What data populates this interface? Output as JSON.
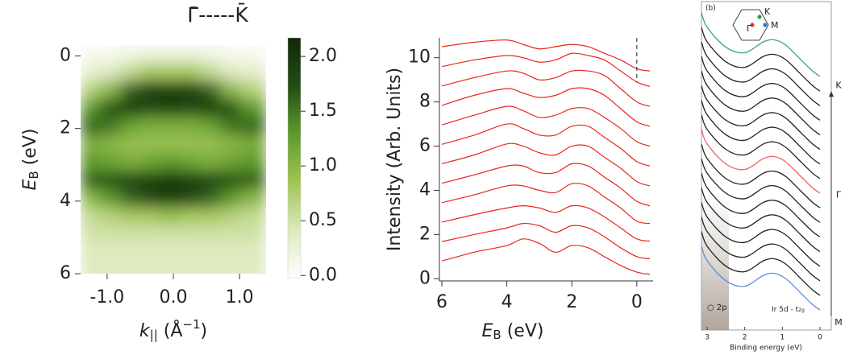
{
  "chart_data": [
    {
      "type": "heatmap",
      "title": "Γ̄-----K̄",
      "ylabel_parts": [
        {
          "text": "E",
          "style": "italic"
        },
        {
          "text": "B",
          "style": "sub"
        },
        {
          "text": " (eV)",
          "style": "normal"
        }
      ],
      "xlabel_parts": [
        {
          "text": "k",
          "style": "italic"
        },
        {
          "text": "||",
          "style": "sub"
        },
        {
          "text": " (Å",
          "style": "normal"
        },
        {
          "text": "−1",
          "style": "sup"
        },
        {
          "text": ")",
          "style": "normal"
        }
      ],
      "x": [
        -1.2,
        -0.9,
        -0.6,
        -0.3,
        0,
        0.3,
        0.6,
        0.9,
        1.2
      ],
      "y": [
        0,
        0.5,
        1,
        1.5,
        2,
        2.5,
        3,
        3.5,
        4,
        4.5,
        5,
        5.5,
        6
      ],
      "values": [
        [
          0.1,
          0.1,
          0.15,
          0.2,
          0.2,
          0.2,
          0.15,
          0.1,
          0.1
        ],
        [
          0.3,
          0.4,
          0.6,
          0.8,
          0.8,
          0.8,
          0.6,
          0.4,
          0.3
        ],
        [
          0.7,
          1.0,
          1.6,
          1.9,
          1.9,
          1.9,
          1.6,
          1.0,
          0.7
        ],
        [
          1.3,
          1.7,
          1.9,
          1.8,
          1.9,
          1.8,
          1.9,
          1.7,
          1.3
        ],
        [
          1.6,
          1.5,
          1.2,
          1.1,
          1.1,
          1.1,
          1.2,
          1.5,
          1.6
        ],
        [
          1.1,
          1.0,
          0.9,
          0.9,
          0.9,
          0.9,
          0.9,
          1.0,
          1.1
        ],
        [
          1.3,
          1.2,
          1.1,
          1.2,
          1.3,
          1.2,
          1.1,
          1.2,
          1.3
        ],
        [
          1.6,
          1.7,
          1.8,
          1.9,
          2.0,
          1.9,
          1.8,
          1.7,
          1.6
        ],
        [
          1.0,
          1.3,
          1.6,
          1.8,
          1.9,
          1.8,
          1.6,
          1.3,
          1.0
        ],
        [
          0.6,
          0.7,
          0.8,
          0.8,
          0.9,
          0.8,
          0.8,
          0.7,
          0.6
        ],
        [
          0.5,
          0.5,
          0.5,
          0.5,
          0.5,
          0.5,
          0.5,
          0.5,
          0.5
        ],
        [
          0.4,
          0.4,
          0.4,
          0.4,
          0.4,
          0.4,
          0.4,
          0.4,
          0.4
        ],
        [
          0.4,
          0.4,
          0.4,
          0.4,
          0.4,
          0.4,
          0.4,
          0.4,
          0.4
        ]
      ],
      "xlim": [
        -1.4,
        1.4
      ],
      "ylim": [
        6,
        -0.3
      ],
      "xticks": [
        {
          "value": -1,
          "label": "-1.0"
        },
        {
          "value": 0,
          "label": "0.0"
        },
        {
          "value": 1,
          "label": "1.0"
        }
      ],
      "yticks": [
        0,
        2,
        4,
        6
      ],
      "colorbar": {
        "lim": [
          -0.02,
          2.17
        ],
        "ticks": [
          {
            "value": 0,
            "label": "0.0"
          },
          0.5,
          {
            "value": 1,
            "label": "1.0"
          },
          1.5,
          {
            "value": 2,
            "label": "2.0"
          }
        ]
      },
      "colormap": [
        "#ffffff",
        "#dde9bd",
        "#9fc453",
        "#5e9a2c",
        "#234d14",
        "#10280a"
      ]
    },
    {
      "type": "line",
      "ylabel": "Intensity (Arb. Units)",
      "xlabel_parts": [
        {
          "text": "E",
          "style": "italic"
        },
        {
          "text": "B",
          "style": "sub"
        },
        {
          "text": " (eV)",
          "style": "normal"
        }
      ],
      "x": [
        6,
        5,
        4,
        3.5,
        3,
        2.5,
        2,
        1.5,
        1,
        0.5,
        0,
        -0.4
      ],
      "series": [
        {
          "color": "#e8261c",
          "values": [
            0.8,
            1.2,
            1.5,
            1.8,
            1.6,
            1.2,
            1.5,
            1.4,
            1.0,
            0.6,
            0.3,
            0.2
          ]
        },
        {
          "color": "#e8261c",
          "values": [
            1.68,
            2.0,
            2.3,
            2.5,
            2.4,
            2.1,
            2.4,
            2.3,
            1.9,
            1.4,
            1.0,
            0.9
          ]
        },
        {
          "color": "#e8261c",
          "values": [
            2.56,
            2.9,
            3.2,
            3.3,
            3.2,
            3.0,
            3.3,
            3.2,
            2.8,
            2.3,
            1.8,
            1.7
          ]
        },
        {
          "color": "#e8261c",
          "values": [
            3.44,
            3.8,
            4.2,
            4.2,
            4.0,
            3.9,
            4.3,
            4.2,
            3.7,
            3.2,
            2.6,
            2.5
          ]
        },
        {
          "color": "#e8261c",
          "values": [
            4.32,
            4.7,
            5.1,
            5.1,
            4.8,
            4.8,
            5.2,
            5.1,
            4.6,
            4.1,
            3.5,
            3.3
          ]
        },
        {
          "color": "#e8261c",
          "values": [
            5.2,
            5.6,
            6.1,
            6.0,
            5.7,
            5.6,
            6.0,
            6.0,
            5.5,
            5.0,
            4.4,
            4.2
          ]
        },
        {
          "color": "#e8261c",
          "values": [
            6.08,
            6.5,
            7.0,
            6.8,
            6.5,
            6.5,
            6.9,
            6.9,
            6.4,
            5.9,
            5.3,
            5.1
          ]
        },
        {
          "color": "#e8261c",
          "values": [
            6.96,
            7.4,
            7.8,
            7.6,
            7.3,
            7.4,
            7.7,
            7.7,
            7.3,
            6.8,
            6.2,
            6.0
          ]
        },
        {
          "color": "#e8261c",
          "values": [
            7.84,
            8.3,
            8.6,
            8.4,
            8.2,
            8.3,
            8.6,
            8.6,
            8.3,
            7.7,
            7.1,
            6.9
          ]
        },
        {
          "color": "#e8261c",
          "values": [
            8.72,
            9.1,
            9.4,
            9.3,
            9.0,
            9.1,
            9.4,
            9.4,
            9.2,
            8.6,
            8.0,
            7.8
          ]
        },
        {
          "color": "#e8261c",
          "values": [
            9.6,
            9.9,
            10.1,
            10.0,
            9.8,
            9.9,
            10.2,
            10.1,
            9.9,
            9.4,
            8.9,
            8.7
          ]
        },
        {
          "color": "#e8261c",
          "values": [
            10.5,
            10.7,
            10.8,
            10.6,
            10.4,
            10.5,
            10.6,
            10.5,
            10.2,
            9.9,
            9.5,
            9.4
          ]
        }
      ],
      "xlim": [
        6,
        -0.5
      ],
      "ylim": [
        -0.1,
        10.9
      ],
      "xticks": [
        6,
        4,
        2,
        0
      ],
      "yticks": [
        0,
        2,
        4,
        6,
        8,
        10
      ],
      "vline": 0
    },
    {
      "type": "line",
      "panel_label": "(b)",
      "xlabel": "Binding energy (eV)",
      "x": [
        3.15,
        3,
        2.5,
        2,
        1.5,
        1.2,
        0.9,
        0.5,
        0.2,
        0
      ],
      "series": [
        {
          "color": "#5b8fd6",
          "values": [
            4.6,
            3.8,
            2.7,
            2.4,
            3.0,
            3.1,
            2.8,
            2.0,
            1.4,
            1.1
          ]
        },
        {
          "color": "#222222",
          "values": [
            5.4,
            4.6,
            3.5,
            3.2,
            3.8,
            3.9,
            3.6,
            2.8,
            2.2,
            1.9
          ]
        },
        {
          "color": "#222222",
          "values": [
            6.2,
            5.4,
            4.3,
            4.0,
            4.6,
            4.7,
            4.4,
            3.6,
            3.0,
            2.7
          ]
        },
        {
          "color": "#222222",
          "values": [
            7.0,
            6.2,
            5.1,
            4.8,
            5.4,
            5.5,
            5.2,
            4.4,
            3.8,
            3.5
          ]
        },
        {
          "color": "#222222",
          "values": [
            7.8,
            7.0,
            5.9,
            5.6,
            6.2,
            6.3,
            6.0,
            5.2,
            4.6,
            4.3
          ]
        },
        {
          "color": "#222222",
          "values": [
            8.6,
            7.8,
            6.7,
            6.4,
            7.0,
            7.1,
            6.8,
            6.0,
            5.4,
            5.1
          ]
        },
        {
          "color": "#222222",
          "values": [
            9.4,
            8.6,
            7.5,
            7.2,
            7.8,
            7.9,
            7.6,
            6.8,
            6.2,
            5.9
          ]
        },
        {
          "color": "#222222",
          "values": [
            10.2,
            9.4,
            8.3,
            8.0,
            8.6,
            8.7,
            8.4,
            7.6,
            7.0,
            6.7
          ]
        },
        {
          "color": "#f06060",
          "values": [
            11.0,
            10.2,
            9.1,
            8.8,
            9.4,
            9.5,
            9.2,
            8.4,
            7.8,
            7.5
          ]
        },
        {
          "color": "#222222",
          "values": [
            11.8,
            11.0,
            9.9,
            9.6,
            10.2,
            10.3,
            10.0,
            9.2,
            8.6,
            8.3
          ]
        },
        {
          "color": "#222222",
          "values": [
            12.6,
            11.8,
            10.7,
            10.4,
            11.0,
            11.1,
            10.8,
            10.0,
            9.4,
            9.1
          ]
        },
        {
          "color": "#222222",
          "values": [
            13.4,
            12.6,
            11.5,
            11.2,
            11.8,
            11.9,
            11.6,
            10.8,
            10.2,
            9.9
          ]
        },
        {
          "color": "#222222",
          "values": [
            14.2,
            13.4,
            12.3,
            12.0,
            12.6,
            12.7,
            12.4,
            11.6,
            11.0,
            10.7
          ]
        },
        {
          "color": "#222222",
          "values": [
            15.0,
            14.2,
            13.1,
            12.8,
            13.4,
            13.5,
            13.2,
            12.4,
            11.8,
            11.5
          ]
        },
        {
          "color": "#222222",
          "values": [
            15.8,
            15.0,
            13.9,
            13.6,
            14.2,
            14.3,
            14.0,
            13.2,
            12.6,
            12.3
          ]
        },
        {
          "color": "#222222",
          "values": [
            16.6,
            15.8,
            14.7,
            14.4,
            15.0,
            15.1,
            14.8,
            14.0,
            13.4,
            13.1
          ]
        },
        {
          "color": "#3aa86a",
          "values": [
            17.4,
            16.6,
            15.5,
            15.2,
            15.8,
            15.9,
            15.6,
            14.8,
            14.2,
            13.9
          ]
        }
      ],
      "xlim": [
        3.15,
        -0.3
      ],
      "ylim": [
        0,
        18
      ],
      "xticks": [
        3,
        2,
        1,
        0
      ],
      "side_labels": [
        {
          "text": "K",
          "y": 13.4,
          "color": "#3aa86a"
        },
        {
          "text": "Γ",
          "y": 7.4,
          "color": "#f06060"
        },
        {
          "text": "M",
          "y": 0.4,
          "color": "#5b8fd6"
        }
      ],
      "core_label": "○ 2p",
      "orbital_label": {
        "main": "Ir 5d - t",
        "sub": "2g"
      },
      "inset_labels": [
        {
          "text": "Γ",
          "color": "#e03030"
        },
        {
          "text": "K",
          "color": "#2a9a50"
        },
        {
          "text": "M",
          "color": "#2f6fd0"
        }
      ]
    }
  ]
}
